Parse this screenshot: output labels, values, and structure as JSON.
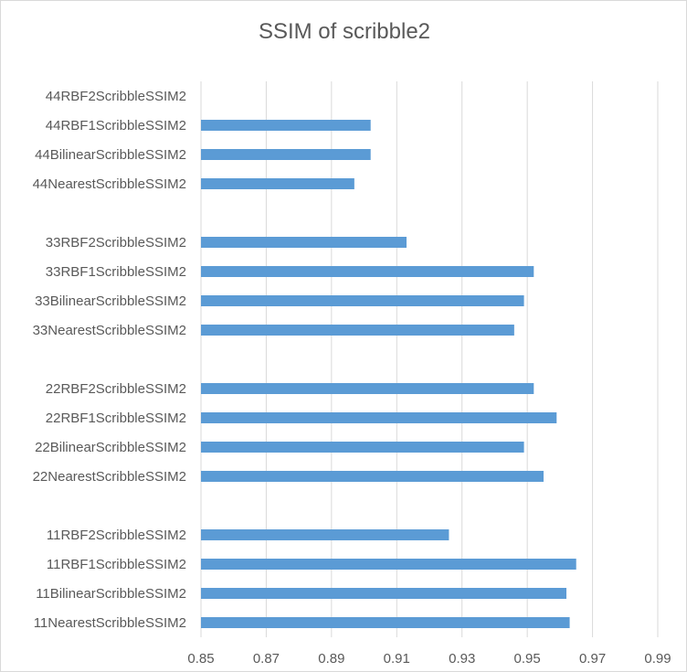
{
  "chart_data": {
    "type": "bar",
    "orientation": "horizontal",
    "title": "SSIM of scribble2",
    "xlabel": "",
    "ylabel": "",
    "xlim": [
      0.85,
      0.99
    ],
    "x_ticks": [
      "0.85",
      "0.87",
      "0.89",
      "0.91",
      "0.93",
      "0.95",
      "0.97",
      "0.99"
    ],
    "grid": "vertical",
    "legend": "none",
    "bar_color": "#5b9bd5",
    "categories": [
      "11NearestScribbleSSIM2",
      "11BilinearScribbleSSIM2",
      "11RBF1ScribbleSSIM2",
      "11RBF2ScribbleSSIM2",
      "",
      "22NearestScribbleSSIM2",
      "22BilinearScribbleSSIM2",
      "22RBF1ScribbleSSIM2",
      "22RBF2ScribbleSSIM2",
      "",
      "33NearestScribbleSSIM2",
      "33BilinearScribbleSSIM2",
      "33RBF1ScribbleSSIM2",
      "33RBF2ScribbleSSIM2",
      "",
      "44NearestScribbleSSIM2",
      "44BilinearScribbleSSIM2",
      "44RBF1ScribbleSSIM2",
      "44RBF2ScribbleSSIM2"
    ],
    "values": [
      0.963,
      0.962,
      0.965,
      0.926,
      null,
      0.955,
      0.949,
      0.959,
      0.952,
      null,
      0.946,
      0.949,
      0.952,
      0.913,
      null,
      0.897,
      0.902,
      0.902,
      null
    ]
  }
}
